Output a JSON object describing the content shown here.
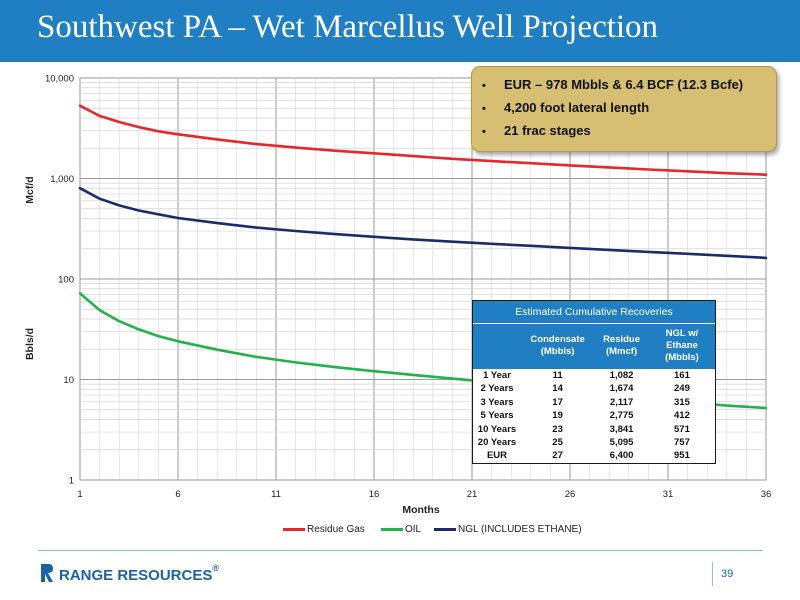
{
  "page": {
    "title": "Southwest PA – Wet Marcellus Well Projection",
    "page_number": "39",
    "logo_text": "RANGE RESOURCES",
    "logo_mark": "®"
  },
  "callout": {
    "bullets": [
      "EUR – 978 Mbbls & 6.4 BCF (12.3 Bcfe)",
      "4,200 foot lateral length",
      "21 frac stages"
    ]
  },
  "recoveries": {
    "title": "Estimated Cumulative Recoveries",
    "columns": [
      "",
      "Condensate (Mbbls)",
      "Residue (Mmcf)",
      "NGL w/ Ethane (Mbbls)"
    ],
    "rows": [
      [
        "1 Year",
        "11",
        "1,082",
        "161"
      ],
      [
        "2 Years",
        "14",
        "1,674",
        "249"
      ],
      [
        "3 Years",
        "17",
        "2,117",
        "315"
      ],
      [
        "5 Years",
        "19",
        "2,775",
        "412"
      ],
      [
        "10 Years",
        "23",
        "3,841",
        "571"
      ],
      [
        "20 Years",
        "25",
        "5,095",
        "757"
      ],
      [
        "EUR",
        "27",
        "6,400",
        "951"
      ]
    ]
  },
  "chart_data": {
    "type": "line",
    "title": "",
    "xlabel": "Months",
    "ylabel_top": "Mcf/d",
    "ylabel_bottom": "Bbls/d",
    "x_scale": "linear",
    "y_scale": "log",
    "xlim": [
      1,
      36
    ],
    "ylim": [
      1,
      10000
    ],
    "x_ticks": [
      "1",
      "6",
      "11",
      "16",
      "21",
      "26",
      "31",
      "36"
    ],
    "y_ticks": [
      "1",
      "10",
      "100",
      "1,000",
      "10,000"
    ],
    "grid": true,
    "legend_position": "bottom",
    "x": [
      1,
      2,
      3,
      4,
      5,
      6,
      8,
      10,
      12,
      14,
      16,
      18,
      20,
      22,
      24,
      26,
      28,
      30,
      32,
      34,
      36
    ],
    "series": [
      {
        "name": "Residue Gas",
        "color": "#e8262b",
        "values": [
          5300,
          4200,
          3650,
          3250,
          2950,
          2750,
          2450,
          2200,
          2030,
          1890,
          1780,
          1670,
          1570,
          1490,
          1420,
          1350,
          1290,
          1230,
          1180,
          1130,
          1090
        ]
      },
      {
        "name": "OIL",
        "color": "#22b14c",
        "values": [
          72,
          49,
          38,
          31.5,
          27,
          24,
          19.8,
          16.8,
          14.8,
          13.3,
          12.1,
          11.1,
          10.2,
          9.4,
          8.6,
          7.9,
          7.1,
          6.4,
          5.9,
          5.5,
          5.2
        ]
      },
      {
        "name": "NGL (INCLUDES ETHANE)",
        "color": "#1c2b6b",
        "values": [
          800,
          630,
          540,
          480,
          440,
          405,
          360,
          325,
          300,
          280,
          263,
          248,
          235,
          224,
          214,
          204,
          195,
          186,
          178,
          170,
          162
        ]
      }
    ]
  }
}
